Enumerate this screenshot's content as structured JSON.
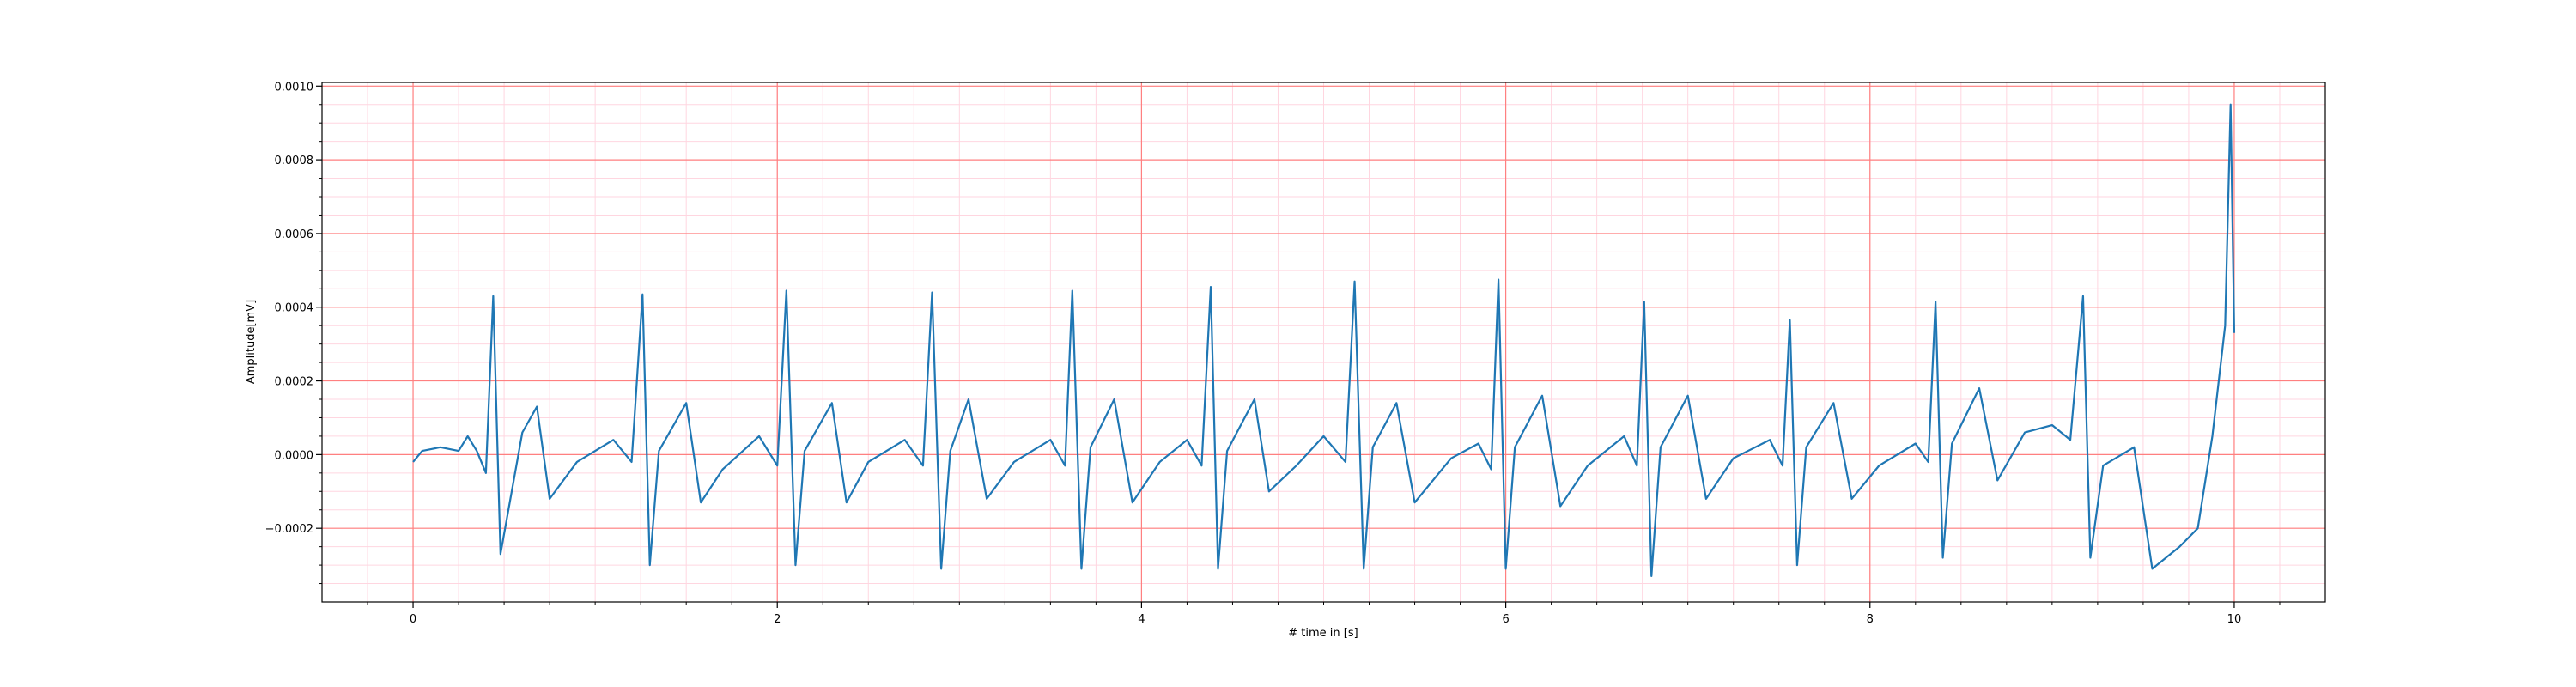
{
  "chart_data": {
    "type": "line",
    "title": "",
    "xlabel": "# time in [s]",
    "ylabel": "Amplitude[mV]",
    "xlim": [
      -0.5,
      10.5
    ],
    "ylim": [
      -0.0004,
      0.00101
    ],
    "grid": "on",
    "line_color": "#1f77b4",
    "major_grid_color": "#ff8080",
    "minor_grid_color": "#ffd6e0",
    "x_ticks": [
      0,
      2,
      4,
      6,
      8,
      10
    ],
    "x_tick_labels": [
      "0",
      "2",
      "4",
      "6",
      "8",
      "10"
    ],
    "y_ticks": [
      -0.0002,
      0.0,
      0.0002,
      0.0004,
      0.0006,
      0.0008,
      0.001
    ],
    "y_tick_labels": [
      "−0.0002",
      "0.0000",
      "0.0002",
      "0.0004",
      "0.0006",
      "0.0008",
      "0.0010"
    ],
    "r_peak_times": [
      0.44,
      1.26,
      2.05,
      2.85,
      3.62,
      4.38,
      5.17,
      5.96,
      6.76,
      7.56,
      8.36,
      9.17
    ],
    "r_peak_amplitudes": [
      0.00043,
      0.000435,
      0.000445,
      0.00044,
      0.000445,
      0.000455,
      0.00047,
      0.000475,
      0.000415,
      0.000365,
      0.000415,
      0.00043
    ],
    "points": [
      [
        0.0,
        -2e-05
      ],
      [
        0.05,
        1e-05
      ],
      [
        0.15,
        2e-05
      ],
      [
        0.25,
        1e-05
      ],
      [
        0.3,
        5e-05
      ],
      [
        0.35,
        1e-05
      ],
      [
        0.4,
        -5e-05
      ],
      [
        0.44,
        0.00043
      ],
      [
        0.48,
        -0.00027
      ],
      [
        0.6,
        6e-05
      ],
      [
        0.68,
        0.00013
      ],
      [
        0.75,
        -0.00012
      ],
      [
        0.9,
        -2e-05
      ],
      [
        1.1,
        4e-05
      ],
      [
        1.2,
        -2e-05
      ],
      [
        1.26,
        0.000435
      ],
      [
        1.3,
        -0.0003
      ],
      [
        1.35,
        1e-05
      ],
      [
        1.5,
        0.00014
      ],
      [
        1.58,
        -0.00013
      ],
      [
        1.7,
        -4e-05
      ],
      [
        1.9,
        5e-05
      ],
      [
        2.0,
        -3e-05
      ],
      [
        2.05,
        0.000445
      ],
      [
        2.1,
        -0.0003
      ],
      [
        2.15,
        1e-05
      ],
      [
        2.3,
        0.00014
      ],
      [
        2.38,
        -0.00013
      ],
      [
        2.5,
        -2e-05
      ],
      [
        2.7,
        4e-05
      ],
      [
        2.8,
        -3e-05
      ],
      [
        2.85,
        0.00044
      ],
      [
        2.9,
        -0.00031
      ],
      [
        2.95,
        1e-05
      ],
      [
        3.05,
        0.00015
      ],
      [
        3.15,
        -0.00012
      ],
      [
        3.3,
        -2e-05
      ],
      [
        3.5,
        4e-05
      ],
      [
        3.58,
        -3e-05
      ],
      [
        3.62,
        0.000445
      ],
      [
        3.67,
        -0.00031
      ],
      [
        3.72,
        2e-05
      ],
      [
        3.85,
        0.00015
      ],
      [
        3.95,
        -0.00013
      ],
      [
        4.1,
        -2e-05
      ],
      [
        4.25,
        4e-05
      ],
      [
        4.33,
        -3e-05
      ],
      [
        4.38,
        0.000455
      ],
      [
        4.42,
        -0.00031
      ],
      [
        4.47,
        1e-05
      ],
      [
        4.62,
        0.00015
      ],
      [
        4.7,
        -0.0001
      ],
      [
        4.85,
        -3e-05
      ],
      [
        5.0,
        5e-05
      ],
      [
        5.12,
        -2e-05
      ],
      [
        5.17,
        0.00047
      ],
      [
        5.22,
        -0.00031
      ],
      [
        5.27,
        2e-05
      ],
      [
        5.4,
        0.00014
      ],
      [
        5.5,
        -0.00013
      ],
      [
        5.7,
        -1e-05
      ],
      [
        5.85,
        3e-05
      ],
      [
        5.92,
        -4e-05
      ],
      [
        5.96,
        0.000475
      ],
      [
        6.0,
        -0.00031
      ],
      [
        6.05,
        2e-05
      ],
      [
        6.2,
        0.00016
      ],
      [
        6.3,
        -0.00014
      ],
      [
        6.45,
        -3e-05
      ],
      [
        6.65,
        5e-05
      ],
      [
        6.72,
        -3e-05
      ],
      [
        6.76,
        0.000415
      ],
      [
        6.8,
        -0.00033
      ],
      [
        6.85,
        2e-05
      ],
      [
        7.0,
        0.00016
      ],
      [
        7.1,
        -0.00012
      ],
      [
        7.25,
        -1e-05
      ],
      [
        7.45,
        4e-05
      ],
      [
        7.52,
        -3e-05
      ],
      [
        7.56,
        0.000365
      ],
      [
        7.6,
        -0.0003
      ],
      [
        7.65,
        2e-05
      ],
      [
        7.8,
        0.00014
      ],
      [
        7.9,
        -0.00012
      ],
      [
        8.05,
        -3e-05
      ],
      [
        8.25,
        3e-05
      ],
      [
        8.32,
        -2e-05
      ],
      [
        8.36,
        0.000415
      ],
      [
        8.4,
        -0.00028
      ],
      [
        8.45,
        3e-05
      ],
      [
        8.6,
        0.00018
      ],
      [
        8.7,
        -7e-05
      ],
      [
        8.85,
        6e-05
      ],
      [
        9.0,
        8e-05
      ],
      [
        9.1,
        4e-05
      ],
      [
        9.17,
        0.00043
      ],
      [
        9.21,
        -0.00028
      ],
      [
        9.28,
        -3e-05
      ],
      [
        9.45,
        2e-05
      ],
      [
        9.55,
        -0.00031
      ],
      [
        9.7,
        -0.00025
      ],
      [
        9.8,
        -0.0002
      ],
      [
        9.88,
        5e-05
      ],
      [
        9.95,
        0.00035
      ],
      [
        9.98,
        0.00095
      ],
      [
        10.0,
        0.00033
      ]
    ]
  }
}
